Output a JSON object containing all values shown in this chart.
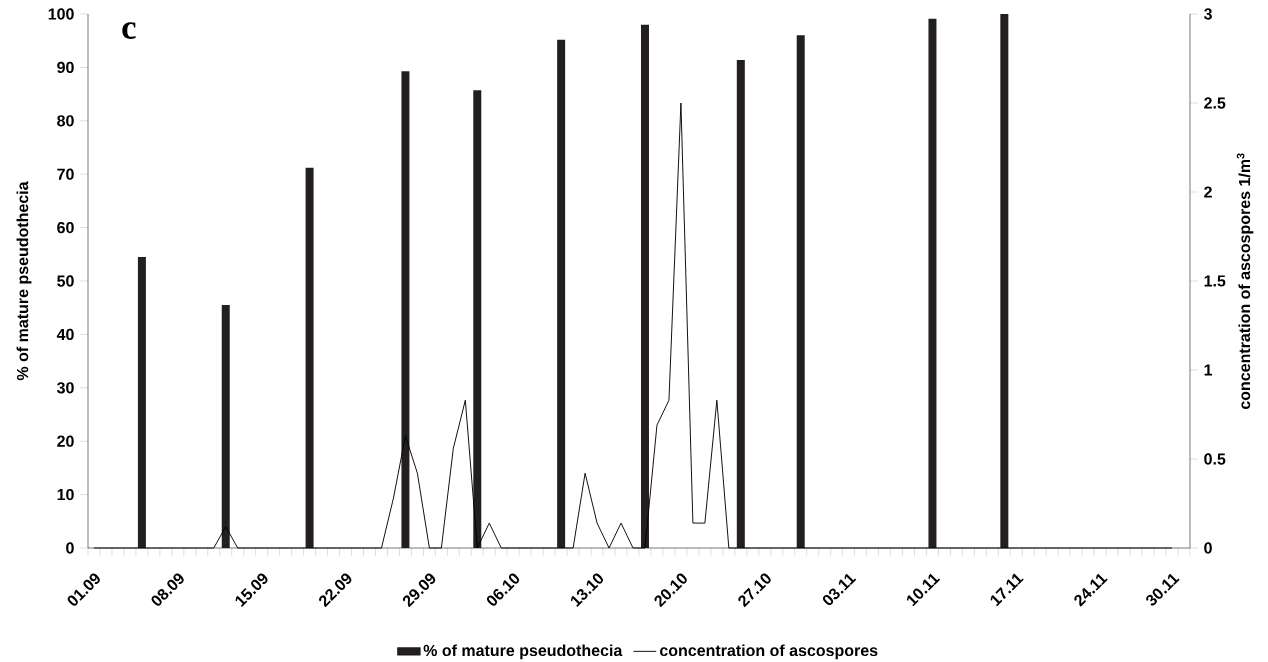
{
  "chart_data": {
    "type": "bar",
    "annotations": [
      "c"
    ],
    "ylabel": "% of mature pseudothecia",
    "y2label": "concentration of ascospores 1/m$^{3}$",
    "categories": [
      "01.09",
      null,
      null,
      null,
      null,
      null,
      null,
      "08.09",
      null,
      null,
      null,
      null,
      null,
      null,
      "15.09",
      null,
      null,
      null,
      null,
      null,
      null,
      "22.09",
      null,
      null,
      null,
      null,
      null,
      null,
      "29.09",
      null,
      null,
      null,
      null,
      null,
      null,
      "06.10",
      null,
      null,
      null,
      null,
      null,
      null,
      "13.10",
      null,
      null,
      null,
      null,
      null,
      null,
      "20.10",
      null,
      null,
      null,
      null,
      null,
      null,
      "27.10",
      null,
      null,
      null,
      null,
      null,
      null,
      "03.11",
      null,
      null,
      null,
      null,
      null,
      null,
      "10.11",
      null,
      null,
      null,
      null,
      null,
      null,
      "17.11",
      null,
      null,
      null,
      null,
      null,
      null,
      "24.11",
      null,
      null,
      null,
      null,
      null,
      "30.11",
      null
    ],
    "ylim": [
      0,
      100
    ],
    "yticks": [
      0,
      10,
      20,
      30,
      40,
      50,
      60,
      70,
      80,
      90,
      100
    ],
    "y2lim": [
      0,
      3
    ],
    "y2ticks": [
      0,
      0.5,
      1,
      1.5,
      2,
      2.5,
      3
    ],
    "legend": "bottom",
    "series": [
      {
        "name": "% of mature pseudothecia",
        "color": "#231f20",
        "values": [
          null,
          null,
          null,
          null,
          54.5,
          null,
          null,
          null,
          null,
          null,
          null,
          45.5,
          null,
          null,
          null,
          null,
          null,
          null,
          71.2,
          null,
          null,
          null,
          null,
          null,
          null,
          null,
          89.3,
          null,
          null,
          null,
          null,
          null,
          85.7,
          null,
          null,
          null,
          null,
          null,
          null,
          95.2,
          null,
          null,
          null,
          null,
          null,
          null,
          98.0,
          null,
          null,
          null,
          null,
          null,
          null,
          null,
          91.4,
          null,
          null,
          null,
          null,
          96.0,
          null,
          null,
          null,
          null,
          null,
          null,
          null,
          null,
          null,
          null,
          99.1,
          null,
          null,
          null,
          null,
          null,
          100,
          null,
          null,
          null,
          null,
          null,
          null,
          null,
          null,
          null,
          null,
          null,
          null,
          null,
          null,
          null
        ]
      },
      {
        "name": "concentration of ascospores",
        "type": "line",
        "axis": "y2",
        "color": "#000000",
        "values": [
          0,
          0,
          0,
          0,
          0,
          0,
          0,
          0,
          0,
          0,
          0,
          0.12,
          0,
          0,
          0,
          0,
          0,
          0,
          0,
          0,
          0,
          0,
          0,
          0,
          0,
          0.28,
          0.63,
          0.42,
          0,
          0,
          0.56,
          0.83,
          0,
          0.14,
          0,
          0,
          0,
          0,
          0,
          0,
          0,
          0.42,
          0.14,
          0,
          0.14,
          0,
          0,
          0.69,
          0.83,
          2.5,
          0.14,
          0.14,
          0.83,
          0,
          0,
          0,
          0,
          0,
          0,
          0,
          0,
          0,
          0,
          0,
          0,
          0,
          0,
          0,
          0,
          0,
          0,
          0,
          0,
          0,
          0,
          0,
          0,
          0,
          0,
          0,
          0,
          0,
          0,
          0,
          0,
          0,
          0,
          0,
          0,
          0,
          0,
          null
        ]
      }
    ]
  }
}
